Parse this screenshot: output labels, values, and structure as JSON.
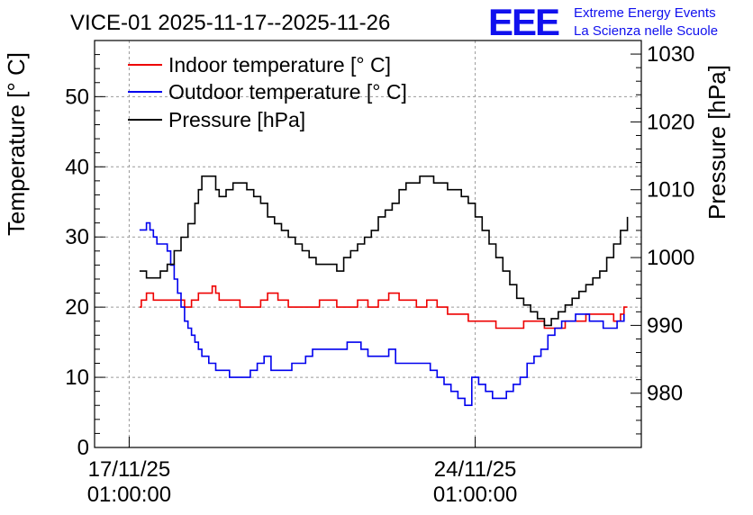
{
  "chart_data": {
    "type": "line",
    "title": "VICE-01 2025-11-17--2025-11-26",
    "brand": {
      "logo": "EEE",
      "line1": "Extreme Energy Events",
      "line2": "La Scienza nelle Scuole"
    },
    "ylabel_left": "Temperature [° C]",
    "ylabel_right": "Pressure [hPa]",
    "ylim_left": [
      0,
      58
    ],
    "ylim_right": [
      972,
      1032
    ],
    "left_ticks": [
      0,
      10,
      20,
      30,
      40,
      50
    ],
    "right_ticks": [
      980,
      990,
      1000,
      1010,
      1020,
      1030
    ],
    "xlim_days": [
      -1.0,
      14.8
    ],
    "x_ticks": [
      {
        "day": 0,
        "date": "17/11/25",
        "time": "01:00:00"
      },
      {
        "day": 10,
        "date": "24/11/25",
        "time": "01:00:00"
      }
    ],
    "grid": true,
    "legend": "top-left",
    "series": [
      {
        "name": "Indoor temperature [° C]",
        "color": "#ee0000",
        "axis": "left",
        "x": [
          0.3,
          0.35,
          0.5,
          0.7,
          0.9,
          1.2,
          1.6,
          1.8,
          2.0,
          2.2,
          2.4,
          2.5,
          2.6,
          2.8,
          3.0,
          3.2,
          3.5,
          3.8,
          4.0,
          4.3,
          4.6,
          4.9,
          5.2,
          5.5,
          5.8,
          6.0,
          6.3,
          6.6,
          6.9,
          7.2,
          7.5,
          7.8,
          8.0,
          8.3,
          8.6,
          8.9,
          9.2,
          9.5,
          9.8,
          10.0,
          10.3,
          10.6,
          10.9,
          11.1,
          11.4,
          11.7,
          12.0,
          12.3,
          12.6,
          12.9,
          13.2,
          13.5,
          13.8,
          14.0,
          14.2,
          14.3,
          14.4
        ],
        "y": [
          20,
          21,
          22,
          21,
          21,
          21,
          20,
          21,
          22,
          22,
          23,
          22,
          21,
          21,
          21,
          20,
          20,
          21,
          22,
          21,
          20,
          20,
          20,
          21,
          21,
          20,
          20,
          21,
          20,
          21,
          22,
          21,
          21,
          20,
          21,
          20,
          19,
          19,
          18,
          18,
          18,
          17,
          17,
          17,
          18,
          18,
          17,
          17,
          18,
          18,
          19,
          19,
          19,
          18,
          19,
          20,
          20
        ]
      },
      {
        "name": "Outdoor temperature [° C]",
        "color": "#0000ee",
        "axis": "left",
        "x": [
          0.3,
          0.4,
          0.5,
          0.6,
          0.7,
          0.8,
          0.9,
          1.0,
          1.1,
          1.2,
          1.3,
          1.4,
          1.5,
          1.6,
          1.7,
          1.8,
          1.9,
          2.0,
          2.1,
          2.3,
          2.5,
          2.7,
          2.9,
          3.1,
          3.3,
          3.5,
          3.7,
          3.9,
          4.1,
          4.3,
          4.5,
          4.7,
          4.9,
          5.1,
          5.3,
          5.5,
          5.7,
          5.9,
          6.1,
          6.3,
          6.5,
          6.7,
          6.9,
          7.1,
          7.3,
          7.5,
          7.7,
          7.9,
          8.1,
          8.3,
          8.5,
          8.7,
          8.9,
          9.1,
          9.3,
          9.5,
          9.7,
          9.9,
          10.1,
          10.3,
          10.5,
          10.7,
          10.9,
          11.1,
          11.3,
          11.5,
          11.7,
          11.9,
          12.1,
          12.3,
          12.5,
          12.7,
          12.9,
          13.1,
          13.3,
          13.5,
          13.7,
          13.9,
          14.1,
          14.3
        ],
        "y": [
          31,
          31,
          32,
          31,
          30,
          29,
          29,
          29,
          28,
          26,
          24,
          22,
          20,
          18,
          17,
          16,
          15,
          14,
          13,
          12,
          11,
          11,
          10,
          10,
          10,
          11,
          12,
          13,
          11,
          11,
          11,
          12,
          12,
          13,
          14,
          14,
          14,
          14,
          14,
          15,
          15,
          14,
          13,
          13,
          13,
          14,
          12,
          12,
          12,
          12,
          12,
          11,
          10,
          9,
          8,
          7,
          6,
          10,
          9,
          8,
          7,
          7,
          8,
          9,
          10,
          12,
          13,
          14,
          16,
          17,
          18,
          18,
          19,
          19,
          18,
          18,
          17,
          17,
          18,
          19
        ]
      },
      {
        "name": "Pressure [hPa]",
        "color": "#000000",
        "axis": "right",
        "x": [
          0.3,
          0.5,
          0.7,
          0.9,
          1.1,
          1.3,
          1.5,
          1.7,
          1.9,
          2.0,
          2.1,
          2.3,
          2.5,
          2.6,
          2.8,
          3.0,
          3.2,
          3.4,
          3.6,
          3.8,
          4.0,
          4.2,
          4.4,
          4.6,
          4.8,
          5.0,
          5.2,
          5.4,
          5.6,
          5.8,
          6.0,
          6.2,
          6.4,
          6.6,
          6.8,
          7.0,
          7.2,
          7.4,
          7.6,
          7.8,
          8.0,
          8.2,
          8.4,
          8.6,
          8.8,
          9.0,
          9.2,
          9.4,
          9.6,
          9.8,
          10.0,
          10.2,
          10.4,
          10.6,
          10.8,
          11.0,
          11.2,
          11.4,
          11.6,
          11.8,
          12.0,
          12.2,
          12.4,
          12.6,
          12.8,
          13.0,
          13.2,
          13.4,
          13.6,
          13.8,
          14.0,
          14.2,
          14.4
        ],
        "y": [
          998,
          997,
          997,
          998,
          999,
          1001,
          1003,
          1005,
          1008,
          1010,
          1012,
          1012,
          1010,
          1009,
          1010,
          1011,
          1011,
          1010,
          1009,
          1008,
          1006,
          1005,
          1004,
          1003,
          1002,
          1001,
          1000,
          999,
          999,
          999,
          998,
          1000,
          1001,
          1002,
          1003,
          1004,
          1006,
          1007,
          1008,
          1010,
          1011,
          1011,
          1012,
          1012,
          1011,
          1011,
          1010,
          1010,
          1009,
          1008,
          1006,
          1004,
          1002,
          1000,
          998,
          996,
          994,
          993,
          992,
          991,
          990,
          991,
          992,
          993,
          994,
          995,
          996,
          997,
          998,
          1000,
          1002,
          1004,
          1006
        ]
      }
    ]
  }
}
